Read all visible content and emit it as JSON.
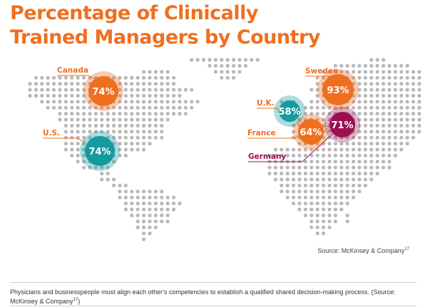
{
  "chart_data": {
    "type": "bubble-map",
    "title_lines": [
      "Percentage of Clinically",
      "Trained Managers by Country"
    ],
    "unit": "%",
    "countries": [
      {
        "name": "Canada",
        "value": 74,
        "color": "#ef6f1f"
      },
      {
        "name": "U.S.",
        "value": 74,
        "color": "#159aa0"
      },
      {
        "name": "Sweden",
        "value": 93,
        "color": "#ef6f1f"
      },
      {
        "name": "U.K.",
        "value": 58,
        "color": "#159aa0"
      },
      {
        "name": "France",
        "value": 64,
        "color": "#ef6f1f"
      },
      {
        "name": "Germany",
        "value": 71,
        "color": "#9c1050"
      }
    ]
  },
  "source": {
    "text": "Source: McKinsey & Company",
    "ref": "17"
  },
  "caption": {
    "text": "Physicians and businesspeople must align each other's competencies to establish a qualified shared decision-making process. (Source: McKinsey & Company",
    "ref": "17",
    "close": ")"
  },
  "colors": {
    "title": "#ef6f1f",
    "dots": "#b8b8b8",
    "label": "#ef6f1f",
    "germany_label": "#9c1050"
  }
}
